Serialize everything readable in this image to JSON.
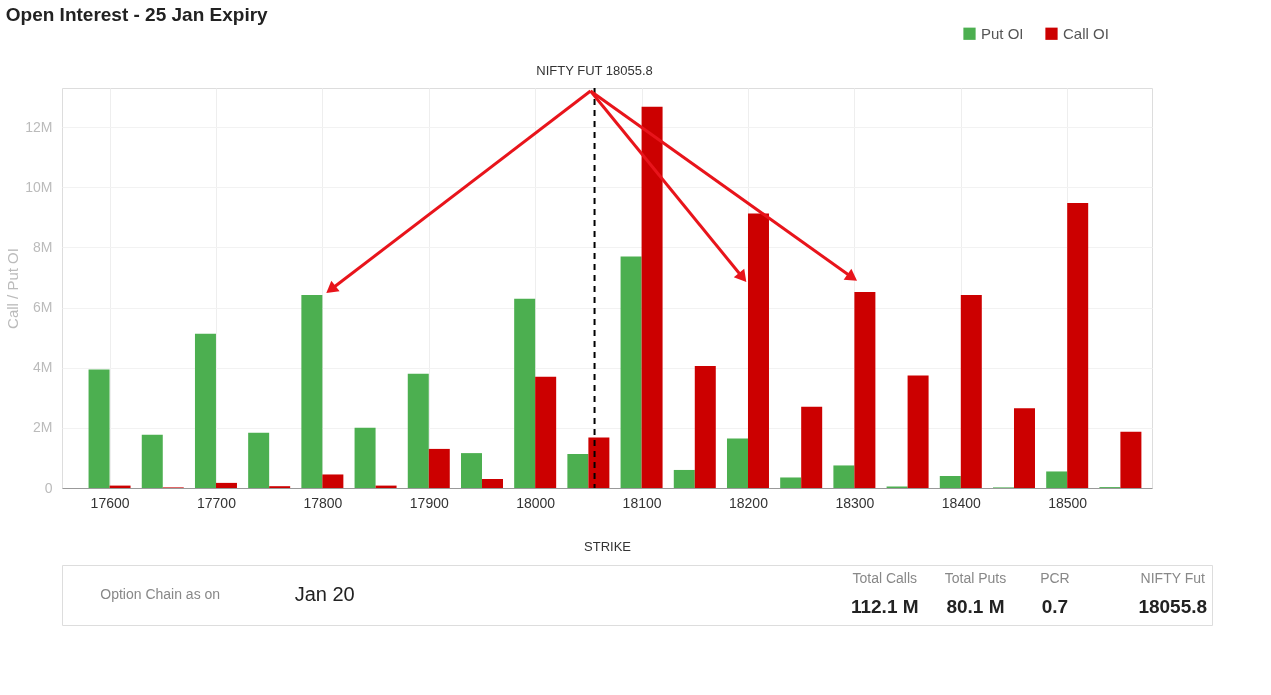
{
  "chart_data": {
    "type": "bar",
    "title": "Open Interest - 25 Jan Expiry",
    "xlabel": "STRIKE",
    "ylabel": "Call / Put OI",
    "x": [
      17600,
      17650,
      17700,
      17750,
      17800,
      17850,
      17900,
      17950,
      18000,
      18050,
      18100,
      18150,
      18200,
      18250,
      18300,
      18350,
      18400,
      18450,
      18500,
      18550
    ],
    "series": [
      {
        "name": "Put OI",
        "color": "#4caf50",
        "values": [
          3.94,
          1.77,
          5.13,
          1.84,
          6.42,
          2.0,
          3.8,
          1.16,
          6.29,
          1.13,
          7.7,
          0.6,
          1.65,
          0.35,
          0.75,
          0.05,
          0.4,
          0.02,
          0.55,
          0.03
        ]
      },
      {
        "name": "Call OI",
        "color": "#cc0000",
        "values": [
          0.08,
          0.02,
          0.17,
          0.06,
          0.45,
          0.08,
          1.3,
          0.3,
          3.7,
          1.68,
          12.68,
          4.06,
          9.13,
          2.7,
          6.52,
          3.74,
          6.42,
          2.65,
          9.48,
          1.87
        ]
      }
    ],
    "xlim": [
      17560,
      18575
    ],
    "xticks": [
      17600,
      17700,
      17800,
      17900,
      18000,
      18100,
      18200,
      18300,
      18400,
      18500
    ],
    "ylim": [
      0,
      13.3
    ],
    "yticks": [
      0,
      {
        "value": 2,
        "label": "2M"
      },
      {
        "value": 4,
        "label": "4M"
      },
      {
        "value": 6,
        "label": "6M"
      },
      {
        "value": 8,
        "label": "8M"
      },
      {
        "value": 10,
        "label": "10M"
      },
      {
        "value": 12,
        "label": "12M"
      }
    ],
    "ref_lines": [
      {
        "axis": "x",
        "value": 18055.8,
        "label": "NIFTY FUT 18055.8",
        "color": "#000000",
        "line_style": "dashed"
      }
    ],
    "annotations": [
      "Option Chain as on",
      "Jan 20",
      "Total Calls",
      "112.1 M",
      "Total Puts",
      "80.1 M",
      "PCR",
      "0.7",
      "NIFTY Fut",
      "18055.8"
    ],
    "grid": true,
    "legend": "top right"
  }
}
